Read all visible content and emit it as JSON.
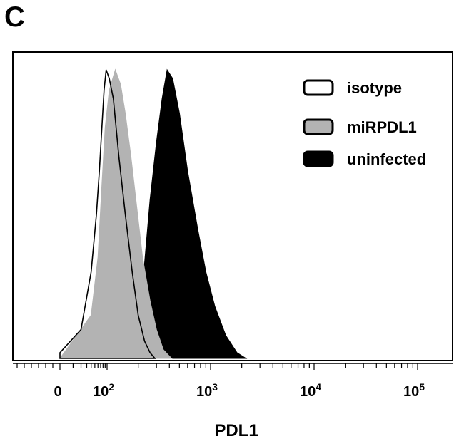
{
  "panel_label": "C",
  "chart_data": {
    "type": "area",
    "chart_subtype": "flow cytometry histogram overlay",
    "xlabel": "PDL1",
    "x_scale": "biexponential (log above ~10)",
    "xticks": [
      {
        "value": 0,
        "base": "0",
        "exp": ""
      },
      {
        "value": 100,
        "base": "10",
        "exp": "2"
      },
      {
        "value": 1000,
        "base": "10",
        "exp": "3"
      },
      {
        "value": 10000,
        "base": "10",
        "exp": "4"
      },
      {
        "value": 100000,
        "base": "10",
        "exp": "5"
      }
    ],
    "grid": false,
    "legend_position": "top-right",
    "series": [
      {
        "name": "isotype",
        "fill": "#ffffff",
        "stroke": "#000000",
        "x": [
          0,
          20,
          40,
          55,
          65,
          75,
          85,
          95,
          105,
          115,
          130,
          150,
          175,
          200,
          230,
          260,
          290
        ],
        "y": [
          0.02,
          0.1,
          0.3,
          0.5,
          0.65,
          0.8,
          0.93,
          1.0,
          0.97,
          0.9,
          0.7,
          0.5,
          0.3,
          0.15,
          0.06,
          0.02,
          0.0
        ]
      },
      {
        "name": "miRPDL1",
        "fill": "#b3b3b3",
        "stroke": "#b3b3b3",
        "x": [
          0,
          40,
          60,
          75,
          90,
          105,
          120,
          135,
          150,
          170,
          190,
          220,
          260,
          300,
          350,
          420
        ],
        "y": [
          0.0,
          0.15,
          0.35,
          0.6,
          0.8,
          0.93,
          1.0,
          0.95,
          0.85,
          0.7,
          0.55,
          0.35,
          0.2,
          0.1,
          0.03,
          0.0
        ]
      },
      {
        "name": "uninfected",
        "fill": "#000000",
        "stroke": "#000000",
        "x": [
          180,
          220,
          260,
          300,
          340,
          380,
          430,
          500,
          600,
          750,
          900,
          1100,
          1400,
          1800,
          2200
        ],
        "y": [
          0.0,
          0.25,
          0.55,
          0.75,
          0.9,
          1.0,
          0.97,
          0.85,
          0.65,
          0.45,
          0.3,
          0.18,
          0.08,
          0.02,
          0.0
        ]
      }
    ]
  }
}
